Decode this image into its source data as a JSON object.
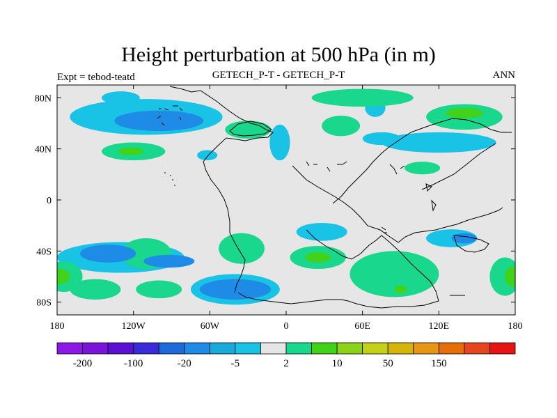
{
  "title": "Height perturbation at 500 hPa (in m)",
  "left_string": "Expt = tebod-teatd",
  "center_string": "GETECH_P-T - GETECH_P-T",
  "right_string": "ANN",
  "map": {
    "projection": "cylindrical-equidistant",
    "lon_range": [
      -180,
      180
    ],
    "lat_range": [
      -90,
      90
    ],
    "background_color": "#e6e6e6",
    "x_ticks": [
      {
        "value": -180,
        "label": "180"
      },
      {
        "value": -120,
        "label": "120W"
      },
      {
        "value": -60,
        "label": "60W"
      },
      {
        "value": 0,
        "label": "0"
      },
      {
        "value": 60,
        "label": "60E"
      },
      {
        "value": 120,
        "label": "120E"
      },
      {
        "value": 180,
        "label": "180"
      }
    ],
    "y_ticks": [
      {
        "value": 80,
        "label": "80N"
      },
      {
        "value": 40,
        "label": "40N"
      },
      {
        "value": 0,
        "label": "0"
      },
      {
        "value": -40,
        "label": "40S"
      },
      {
        "value": -80,
        "label": "80S"
      }
    ]
  },
  "colorbar": {
    "colors": [
      "#8a19e6",
      "#7a14d9",
      "#5a10d0",
      "#3a2ad8",
      "#1e6ad9",
      "#1e8ce6",
      "#19aad9",
      "#19c3e6",
      "#e6e6e6",
      "#19d78c",
      "#41d219",
      "#8cd219",
      "#c3d219",
      "#d7b40a",
      "#e69614",
      "#e66e0a",
      "#e6461e",
      "#e61414"
    ],
    "labels": [
      {
        "index": 1,
        "text": "-200"
      },
      {
        "index": 3,
        "text": "-100"
      },
      {
        "index": 5,
        "text": "-20"
      },
      {
        "index": 7,
        "text": "-5"
      },
      {
        "index": 9,
        "text": "2"
      },
      {
        "index": 11,
        "text": "10"
      },
      {
        "index": 13,
        "text": "50"
      },
      {
        "index": 15,
        "text": "150"
      }
    ]
  },
  "field": {
    "unit": "m",
    "anomalies": [
      {
        "kind": "negative",
        "level": 1,
        "lon": -110,
        "lat": 65,
        "rx": 60,
        "ry": 14
      },
      {
        "kind": "negative",
        "level": 2,
        "lon": -100,
        "lat": 62,
        "rx": 35,
        "ry": 8
      },
      {
        "kind": "negative",
        "level": 1,
        "lon": -130,
        "lat": 80,
        "rx": 15,
        "ry": 5
      },
      {
        "kind": "negative",
        "level": 1,
        "lon": -5,
        "lat": 45,
        "rx": 8,
        "ry": 14
      },
      {
        "kind": "negative",
        "level": 1,
        "lon": -62,
        "lat": 35,
        "rx": 8,
        "ry": 4
      },
      {
        "kind": "negative",
        "level": 1,
        "lon": 70,
        "lat": 72,
        "rx": 8,
        "ry": 7
      },
      {
        "kind": "negative",
        "level": 1,
        "lon": 120,
        "lat": 45,
        "rx": 45,
        "ry": 8
      },
      {
        "kind": "negative",
        "level": 1,
        "lon": 75,
        "lat": 48,
        "rx": 15,
        "ry": 5
      },
      {
        "kind": "negative",
        "level": 1,
        "lon": -130,
        "lat": -45,
        "rx": 50,
        "ry": 12
      },
      {
        "kind": "negative",
        "level": 2,
        "lon": -140,
        "lat": -42,
        "rx": 22,
        "ry": 7
      },
      {
        "kind": "negative",
        "level": 2,
        "lon": -92,
        "lat": -48,
        "rx": 20,
        "ry": 5
      },
      {
        "kind": "negative",
        "level": 1,
        "lon": -40,
        "lat": -70,
        "rx": 35,
        "ry": 12
      },
      {
        "kind": "negative",
        "level": 2,
        "lon": -40,
        "lat": -70,
        "rx": 28,
        "ry": 8
      },
      {
        "kind": "negative",
        "level": 1,
        "lon": 28,
        "lat": -25,
        "rx": 20,
        "ry": 7
      },
      {
        "kind": "negative",
        "level": 1,
        "lon": 130,
        "lat": -30,
        "rx": 20,
        "ry": 7
      },
      {
        "kind": "negative",
        "level": 2,
        "lon": 140,
        "lat": -30,
        "rx": 10,
        "ry": 4
      },
      {
        "kind": "positive",
        "level": 1,
        "lon": -120,
        "lat": 38,
        "rx": 25,
        "ry": 7
      },
      {
        "kind": "positive",
        "level": 2,
        "lon": -122,
        "lat": 38,
        "rx": 10,
        "ry": 3
      },
      {
        "kind": "positive",
        "level": 1,
        "lon": -30,
        "lat": 55,
        "rx": 18,
        "ry": 7
      },
      {
        "kind": "positive",
        "level": 1,
        "lon": 60,
        "lat": 80,
        "rx": 40,
        "ry": 7
      },
      {
        "kind": "positive",
        "level": 1,
        "lon": 140,
        "lat": 65,
        "rx": 30,
        "ry": 10
      },
      {
        "kind": "positive",
        "level": 2,
        "lon": 140,
        "lat": 68,
        "rx": 15,
        "ry": 4
      },
      {
        "kind": "positive",
        "level": 1,
        "lon": 43,
        "lat": 58,
        "rx": 15,
        "ry": 8
      },
      {
        "kind": "positive",
        "level": 1,
        "lon": 107,
        "lat": 25,
        "rx": 14,
        "ry": 5
      },
      {
        "kind": "positive",
        "level": 1,
        "lon": -110,
        "lat": -42,
        "rx": 20,
        "ry": 12
      },
      {
        "kind": "positive",
        "level": 1,
        "lon": -150,
        "lat": -70,
        "rx": 20,
        "ry": 8
      },
      {
        "kind": "positive",
        "level": 1,
        "lon": -175,
        "lat": -60,
        "rx": 15,
        "ry": 12
      },
      {
        "kind": "positive",
        "level": 2,
        "lon": -178,
        "lat": -60,
        "rx": 8,
        "ry": 6
      },
      {
        "kind": "positive",
        "level": 1,
        "lon": -100,
        "lat": -70,
        "rx": 18,
        "ry": 7
      },
      {
        "kind": "positive",
        "level": 1,
        "lon": -35,
        "lat": -38,
        "rx": 18,
        "ry": 12
      },
      {
        "kind": "positive",
        "level": 1,
        "lon": 25,
        "lat": -45,
        "rx": 22,
        "ry": 9
      },
      {
        "kind": "positive",
        "level": 2,
        "lon": 25,
        "lat": -45,
        "rx": 10,
        "ry": 4
      },
      {
        "kind": "positive",
        "level": 1,
        "lon": 85,
        "lat": -58,
        "rx": 35,
        "ry": 18
      },
      {
        "kind": "positive",
        "level": 2,
        "lon": 90,
        "lat": -70,
        "rx": 5,
        "ry": 3
      },
      {
        "kind": "positive",
        "level": 1,
        "lon": 172,
        "lat": -60,
        "rx": 12,
        "ry": 15
      },
      {
        "kind": "positive",
        "level": 2,
        "lon": 178,
        "lat": -60,
        "rx": 6,
        "ry": 8
      }
    ]
  }
}
